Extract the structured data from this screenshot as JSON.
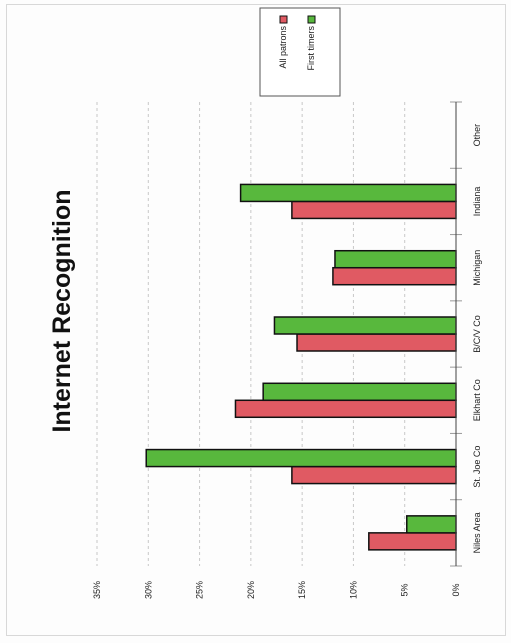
{
  "chart_data": {
    "type": "bar",
    "orientation": "rotated-90",
    "title": "Internet Recognition",
    "categories": [
      "Niles Area",
      "St. Joe Co",
      "Elkhart Co",
      "B/C/V Co",
      "Michigan",
      "Indiana",
      "Other"
    ],
    "series": [
      {
        "name": "All patrons",
        "values": [
          8.5,
          16.0,
          21.5,
          15.5,
          12.0,
          16.0,
          0
        ],
        "color": "#e05a63"
      },
      {
        "name": "First timers",
        "values": [
          4.8,
          30.2,
          18.8,
          17.7,
          11.8,
          21.0,
          0
        ],
        "color": "#58b83d"
      }
    ],
    "y_ticks": [
      "0%",
      "5%",
      "10%",
      "15%",
      "20%",
      "25%",
      "30%",
      "35%"
    ],
    "ylim": [
      0,
      35
    ],
    "grid": true,
    "legend_position": "top-right"
  }
}
